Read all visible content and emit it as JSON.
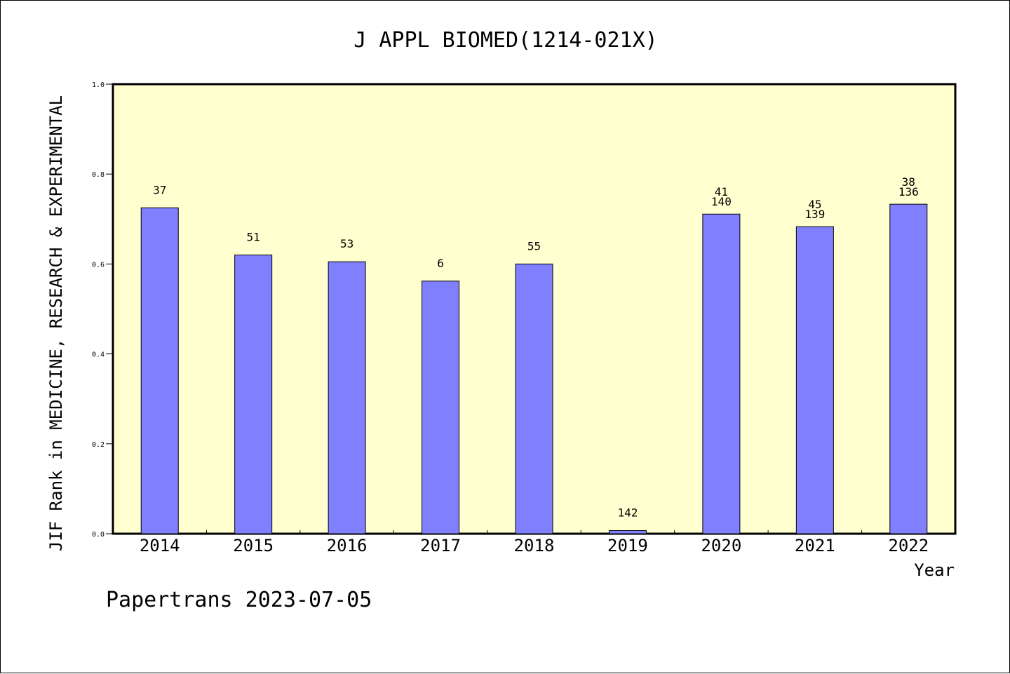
{
  "chart_data": {
    "type": "bar",
    "title": "J APPL BIOMED(1214-021X)",
    "ylabel": "JIF Rank in MEDICINE, RESEARCH & EXPERIMENTAL",
    "xlabel": "Year",
    "ylim": [
      0,
      1.0
    ],
    "yticks": [
      "0.0",
      "0.2",
      "0.4",
      "0.6",
      "0.8",
      "1.0"
    ],
    "ytick_values": [
      0,
      0.2,
      0.4,
      0.6,
      0.8,
      1.0
    ],
    "categories": [
      "2014",
      "2015",
      "2016",
      "2017",
      "2018",
      "2019",
      "2020",
      "2021",
      "2022"
    ],
    "values": [
      0.725,
      0.62,
      0.605,
      0.562,
      0.6,
      0.007,
      0.711,
      0.683,
      0.733
    ],
    "bar_labels": [
      [
        "37"
      ],
      [
        "51"
      ],
      [
        "53"
      ],
      [
        "6"
      ],
      [
        "55"
      ],
      [
        "142"
      ],
      [
        "41",
        "140"
      ],
      [
        "45",
        "139"
      ],
      [
        "38",
        "136"
      ]
    ],
    "colors": {
      "plot_background": "#ffffd0",
      "bar_fill": "#8080ff",
      "bar_stroke": "#000000"
    },
    "grid": false,
    "legend": "none"
  },
  "footer": "Papertrans 2023-07-05"
}
